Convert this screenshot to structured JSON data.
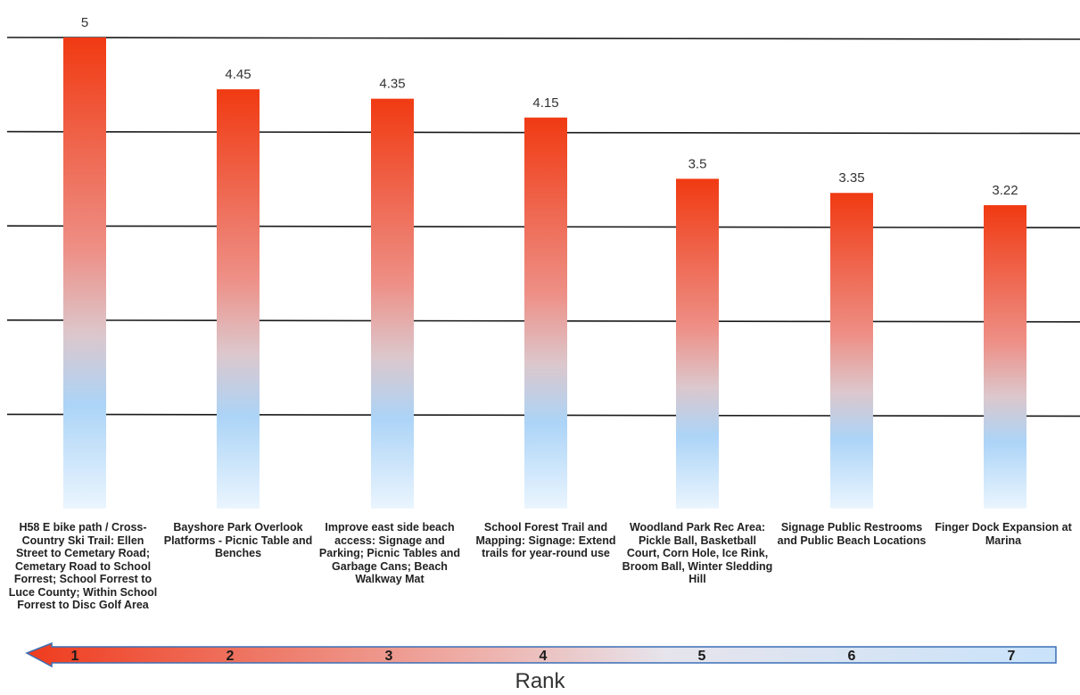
{
  "chart_data": {
    "type": "bar",
    "categories": [
      "H58 E bike path / Cross-Country Ski Trail: Ellen Street to Cemetary Road; Cemetary Road to School Forrest; School Forrest to Luce County; Within School Forrest to Disc Golf Area",
      "Bayshore Park Overlook Platforms - Picnic Table and Benches",
      "Improve east side beach access: Signage and Parking; Picnic Tables and Garbage Cans; Beach Walkway Mat",
      "School Forest Trail and Mapping: Signage: Extend trails for year-round use",
      "Woodland Park Rec Area: Pickle Ball, Basketball Court, Corn Hole, Ice Rink, Broom Ball, Winter Sledding Hill",
      "Signage Public Restrooms and Public Beach Locations",
      "Finger Dock Expansion at Marina"
    ],
    "values": [
      5,
      4.45,
      4.35,
      4.15,
      3.5,
      3.35,
      3.22
    ],
    "value_labels": [
      "5",
      "4.45",
      "4.35",
      "4.15",
      "3.5",
      "3.35",
      "3.22"
    ],
    "ylim": [
      0,
      5
    ],
    "gridlines": [
      1,
      2,
      3,
      4,
      5
    ],
    "grid": true,
    "xlabel": "Rank",
    "rank_labels": [
      "1",
      "2",
      "3",
      "4",
      "5",
      "6",
      "7"
    ],
    "colors": {
      "bar_top": "#f03a12",
      "bar_mid": "#f2b7b0",
      "bar_bottom": "#e6f3fd",
      "bar_blue": "#a6d3f8",
      "arrow_start": "#ef3b1d",
      "arrow_end": "#d4e9fb",
      "grid": "#1a1a1a"
    }
  }
}
